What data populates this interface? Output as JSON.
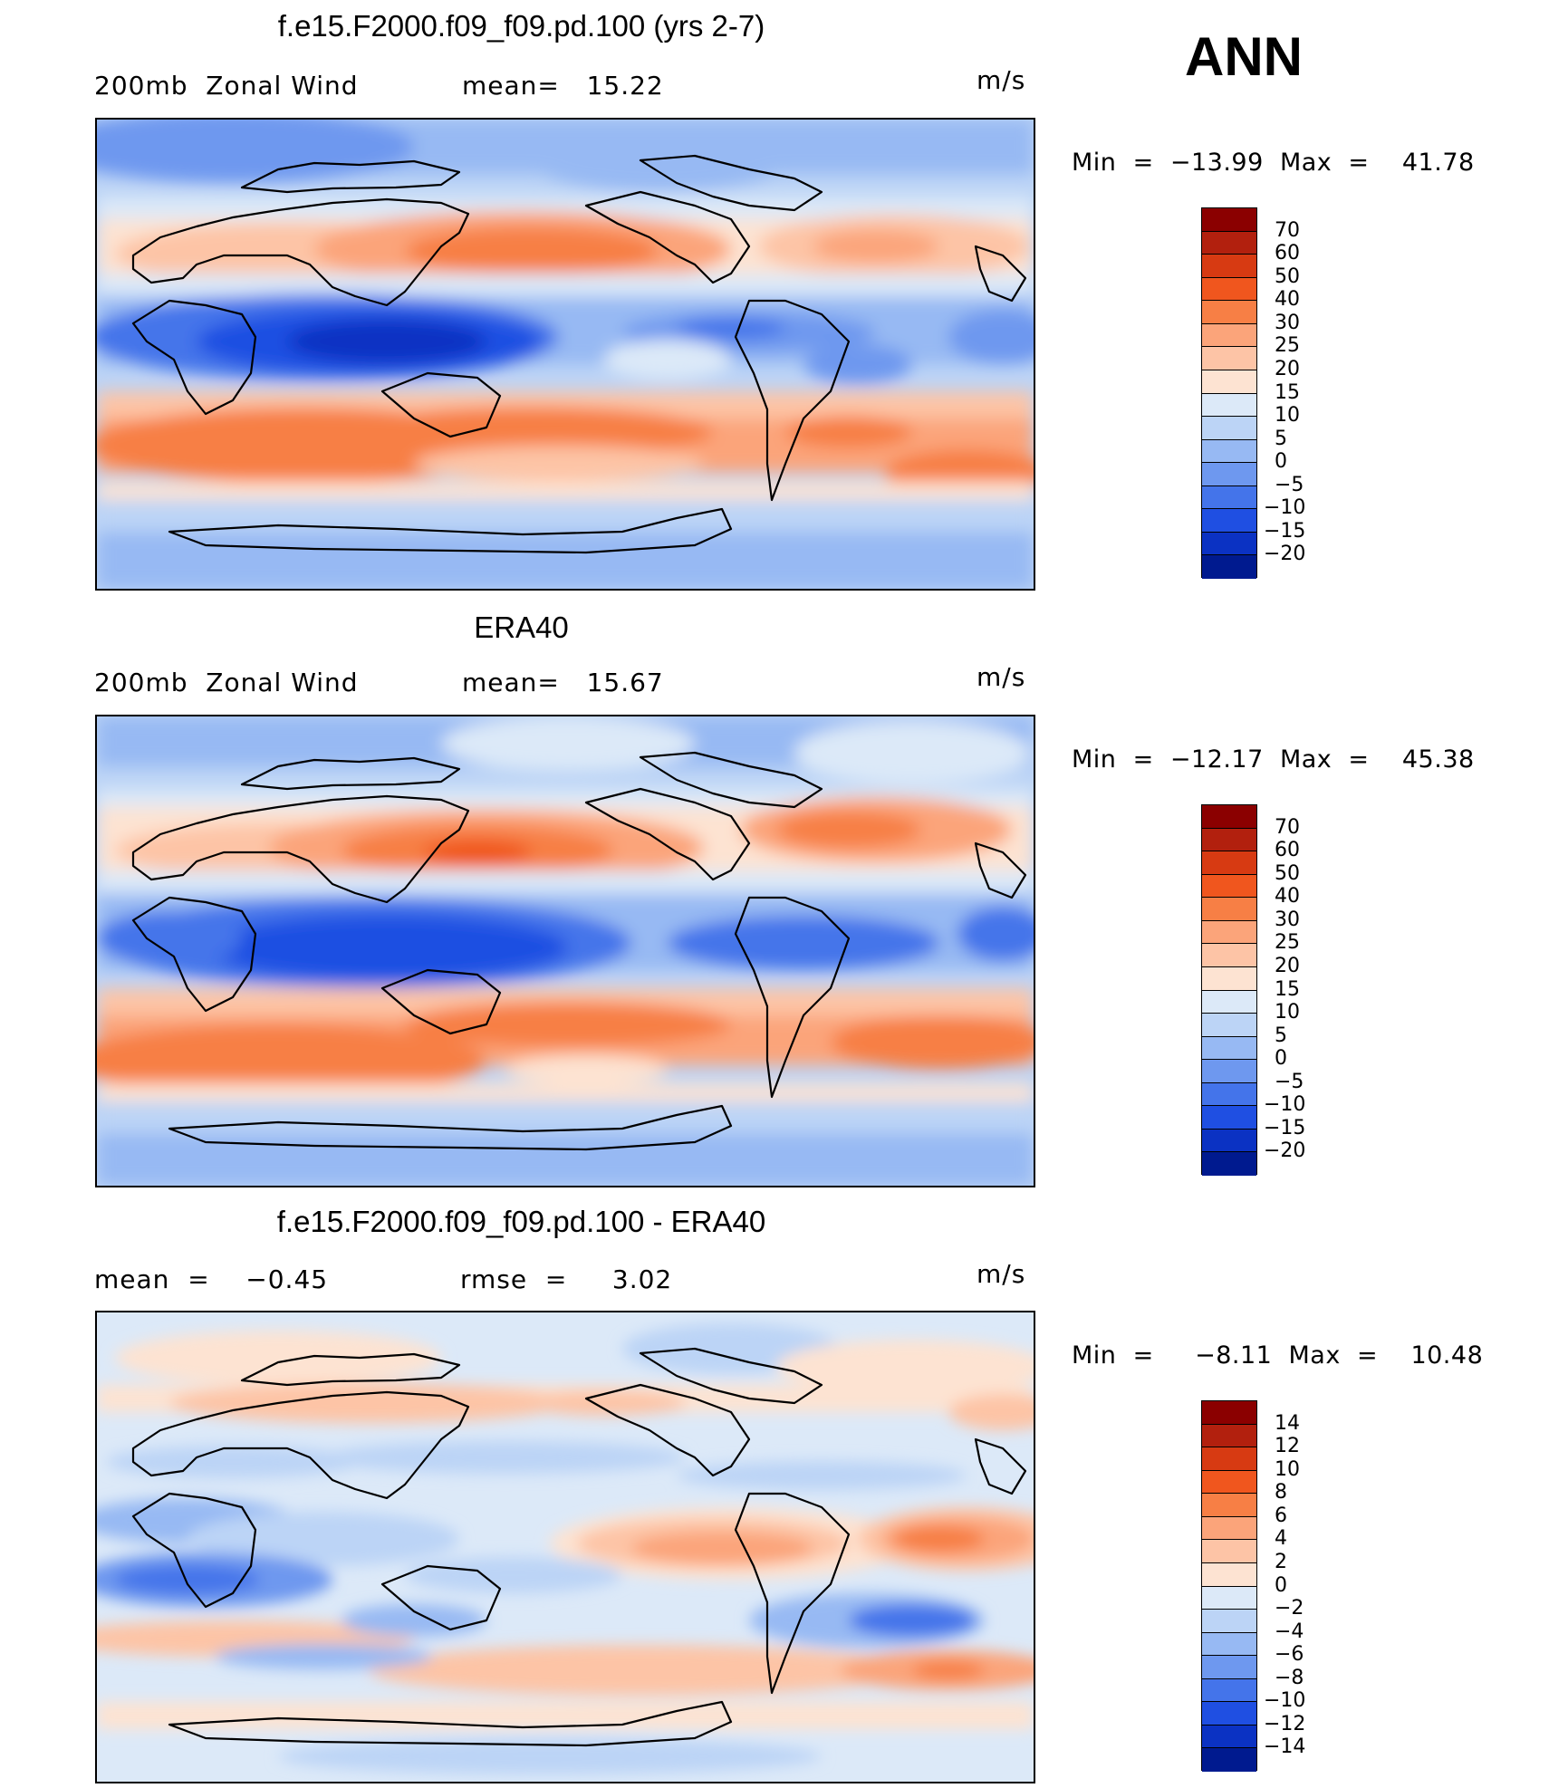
{
  "season": "ANN",
  "units": "m/s",
  "panels": [
    {
      "title": "f.e15.F2000.f09_f09.pd.100 (yrs 2-7)",
      "left_label": "200mb  Zonal Wind",
      "middle_label": "mean=   15.22",
      "min_max": "Min  =  −13.99  Max  =    41.78"
    },
    {
      "title": "ERA40",
      "left_label": "200mb  Zonal Wind",
      "middle_label": "mean=   15.67",
      "min_max": "Min  =  −12.17  Max  =    45.38"
    },
    {
      "title": "f.e15.F2000.f09_f09.pd.100 - ERA40",
      "left_label": "mean  =    −0.45",
      "middle_label": "rmse  =     3.02",
      "min_max": "Min  =     −8.11  Max  =    10.48"
    }
  ],
  "colorbars": {
    "absolute": {
      "labels": [
        "70",
        "60",
        "50",
        "40",
        "30",
        "25",
        "20",
        "15",
        "10",
        "5",
        "0",
        "−5",
        "−10",
        "−15",
        "−20"
      ],
      "colors": [
        "#8b0000",
        "#b2200e",
        "#d73a12",
        "#f0561e",
        "#f77f45",
        "#fba47a",
        "#fdc4a6",
        "#fde3d2",
        "#dce9f8",
        "#bcd4f6",
        "#97b9f3",
        "#6e98ef",
        "#4474ea",
        "#1f4fe2",
        "#0b32c3",
        "#001a8f"
      ]
    },
    "difference": {
      "labels": [
        "14",
        "12",
        "10",
        "8",
        "6",
        "4",
        "2",
        "0",
        "−2",
        "−4",
        "−6",
        "−8",
        "−10",
        "−12",
        "−14"
      ],
      "colors": [
        "#8b0000",
        "#b2200e",
        "#d73a12",
        "#f0561e",
        "#f77f45",
        "#fba47a",
        "#fdc4a6",
        "#fde3d2",
        "#dce9f8",
        "#bcd4f6",
        "#97b9f3",
        "#6e98ef",
        "#4474ea",
        "#1f4fe2",
        "#0b32c3",
        "#001a8f"
      ]
    }
  }
}
